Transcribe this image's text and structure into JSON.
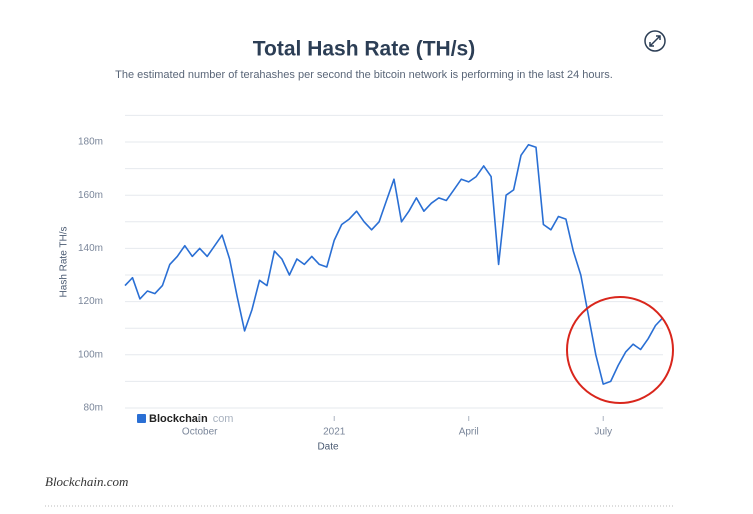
{
  "chart_data": {
    "type": "line",
    "title": "Total Hash Rate (TH/s)",
    "subtitle": "The estimated number of terahashes per second the bitcoin network is performing in the last 24 hours.",
    "y_label": "Hash Rate TH/s",
    "x_label": "Date",
    "watermark_brand": "Blockchain",
    "watermark_suffix": "com",
    "categories": [
      null,
      null,
      null,
      null,
      null,
      null,
      null,
      null,
      null,
      null,
      "October",
      null,
      null,
      null,
      null,
      null,
      null,
      null,
      null,
      null,
      null,
      null,
      null,
      null,
      null,
      null,
      null,
      null,
      "2021",
      null,
      null,
      null,
      null,
      null,
      null,
      null,
      null,
      null,
      null,
      null,
      null,
      null,
      null,
      null,
      null,
      null,
      "April",
      null,
      null,
      null,
      null,
      null,
      null,
      null,
      null,
      null,
      null,
      null,
      null,
      null,
      null,
      null,
      null,
      null,
      "July",
      null,
      null,
      null,
      null,
      null,
      null,
      null,
      null
    ],
    "series": [
      {
        "color": "#2a6fd4",
        "values": [
          126,
          129,
          121,
          124,
          123,
          126,
          134,
          137,
          141,
          137,
          140,
          137,
          141,
          145,
          136,
          122,
          109,
          117,
          128,
          126,
          139,
          136,
          130,
          136,
          134,
          137,
          134,
          133,
          143,
          149,
          151,
          154,
          150,
          147,
          150,
          158,
          166,
          150,
          154,
          159,
          154,
          157,
          159,
          158,
          162,
          166,
          165,
          167,
          171,
          167,
          134,
          160,
          162,
          175,
          179,
          178,
          149,
          147,
          152,
          151,
          139,
          130,
          115,
          100,
          89,
          90,
          96,
          101,
          104,
          102,
          106,
          111,
          114
        ]
      }
    ],
    "ylim": [
      80,
      190
    ],
    "yticks": [
      {
        "value": 80,
        "label": "80m"
      },
      {
        "value": 100,
        "label": "100m"
      },
      {
        "value": 120,
        "label": "120m"
      },
      {
        "value": 140,
        "label": "140m"
      },
      {
        "value": 160,
        "label": "160m"
      },
      {
        "value": 180,
        "label": "180m"
      }
    ],
    "minor_yticks": [
      90,
      110,
      130,
      150,
      170,
      190
    ],
    "grid": true
  },
  "footer": "Blockchain.com"
}
